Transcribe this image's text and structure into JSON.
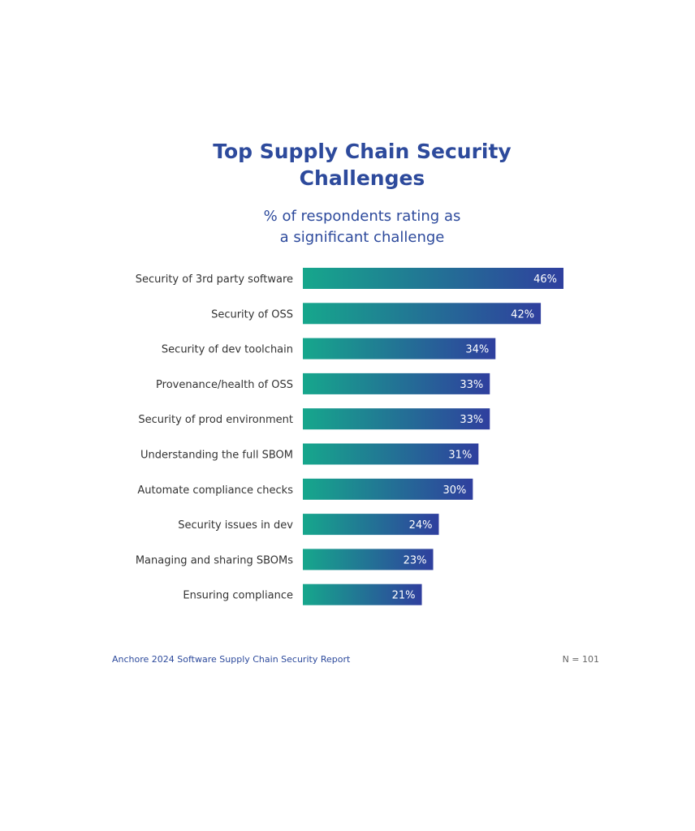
{
  "title_lines": [
    "Top Supply Chain Security",
    "Challenges"
  ],
  "subtitle_lines": [
    "% of respondents rating as",
    "a significant challenge"
  ],
  "footer": {
    "source": "Anchore 2024 Software Supply Chain Security Report",
    "sample": "N = 101"
  },
  "colors": {
    "title": "#2d4a9c",
    "bar_start": "#16a78c",
    "bar_end": "#2f3f9e",
    "label": "#333333",
    "value_label": "#ffffff"
  },
  "chart_data": {
    "type": "bar",
    "orientation": "horizontal",
    "title": "Top Supply Chain Security Challenges",
    "subtitle": "% of respondents rating as a significant challenge",
    "categories": [
      "Security of 3rd party software",
      "Security of OSS",
      "Security of dev toolchain",
      "Provenance/health of OSS",
      "Security of prod environment",
      "Understanding the full SBOM",
      "Automate compliance checks",
      "Security issues in dev",
      "Managing and sharing SBOMs",
      "Ensuring compliance"
    ],
    "values": [
      46,
      42,
      34,
      33,
      33,
      31,
      30,
      24,
      23,
      21
    ],
    "value_labels": [
      "46%",
      "42%",
      "34%",
      "33%",
      "33%",
      "31%",
      "30%",
      "24%",
      "23%",
      "21%"
    ],
    "unit": "%",
    "xlim": [
      0,
      46
    ],
    "grid": false,
    "legend": "none"
  }
}
